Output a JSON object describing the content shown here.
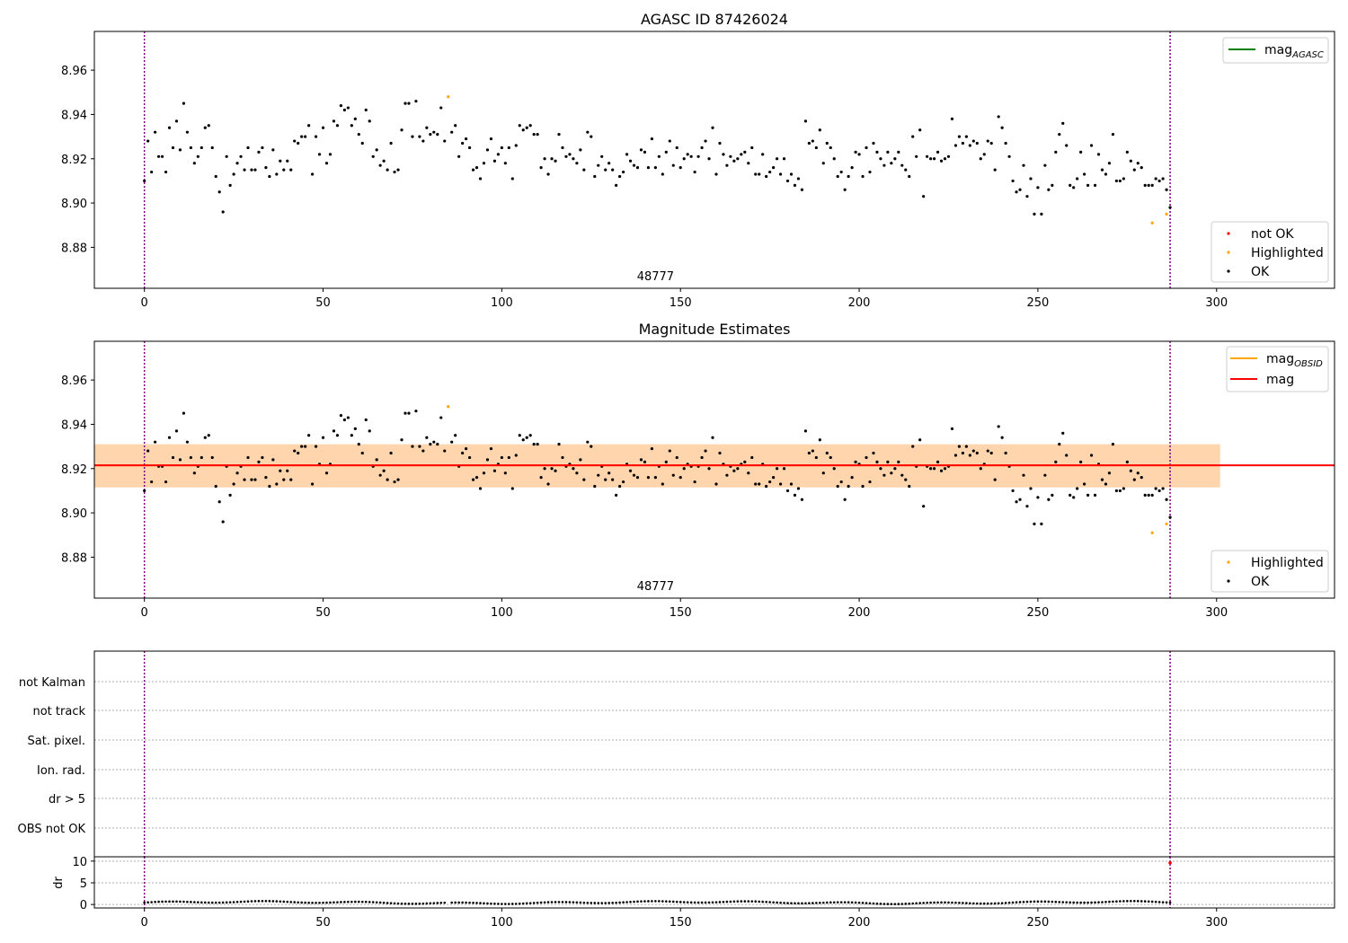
{
  "colors": {
    "ok": "#000000",
    "not_ok": "#ff0000",
    "highlighted": "#ffa500",
    "mag_agasc_line": "#008000",
    "mag_obsid_line": "#ffa500",
    "mag_line": "#ff0000",
    "obsid_band": "#ffa500",
    "mag_band": "#ffb6c1",
    "event_line": "#800080",
    "grid": "#b0b0b0"
  },
  "chart_data": [
    {
      "type": "scatter",
      "title": "AGASC ID 87426024",
      "xlim": [
        -14,
        333
      ],
      "ylim": [
        8.8615,
        8.9775
      ],
      "xticks": [
        0,
        50,
        100,
        150,
        200,
        250,
        300
      ],
      "yticks": [
        8.88,
        8.9,
        8.92,
        8.94,
        8.96
      ],
      "vlines": [
        0,
        287
      ],
      "annotation": {
        "text": "48777",
        "x": 143
      },
      "legend_lines": [
        {
          "label_main": "mag",
          "label_sub": "AGASC",
          "color": "#008000"
        }
      ],
      "legend_markers": [
        {
          "label": "not OK",
          "color": "#ff0000"
        },
        {
          "label": "Highlighted",
          "color": "#ffa500"
        },
        {
          "label": "OK",
          "color": "#000000"
        }
      ],
      "highlighted_points": [
        [
          85,
          8.948
        ],
        [
          282,
          8.891
        ],
        [
          286,
          8.895
        ]
      ]
    },
    {
      "type": "scatter",
      "title": "Magnitude Estimates",
      "xlim": [
        -14,
        333
      ],
      "ylim": [
        8.8615,
        8.9775
      ],
      "xticks": [
        0,
        50,
        100,
        150,
        200,
        250,
        300
      ],
      "yticks": [
        8.88,
        8.9,
        8.92,
        8.94,
        8.96
      ],
      "vlines": [
        0,
        287
      ],
      "annotation": {
        "text": "48777",
        "x": 143
      },
      "mag_obsid": 8.9215,
      "mag": 8.9215,
      "band_obsid": [
        8.9115,
        8.931
      ],
      "band_mag": [
        8.9115,
        8.931
      ],
      "band_x": [
        -14,
        301
      ],
      "legend_lines": [
        {
          "label_main": "mag",
          "label_sub": "OBSID",
          "color": "#ffa500"
        },
        {
          "label_main": "mag",
          "label_sub": "",
          "color": "#ff0000"
        }
      ],
      "legend_markers": [
        {
          "label": "Highlighted",
          "color": "#ffa500"
        },
        {
          "label": "OK",
          "color": "#000000"
        }
      ],
      "highlighted_points": [
        [
          85,
          8.948
        ],
        [
          282,
          8.891
        ],
        [
          286,
          8.895
        ]
      ]
    },
    {
      "type": "scatter",
      "xlim": [
        -14,
        333
      ],
      "flag_labels": [
        "not Kalman",
        "not track",
        "Sat. pixel.",
        "Ion. rad.",
        "dr > 5",
        "OBS not OK"
      ],
      "vlines": [
        0,
        287
      ]
    },
    {
      "type": "scatter",
      "ylabel": "dr",
      "xlim": [
        -14,
        333
      ],
      "ylim": [
        -0.8,
        11
      ],
      "xticks": [
        0,
        50,
        100,
        150,
        200,
        250,
        300
      ],
      "yticks": [
        0,
        5,
        10
      ],
      "vlines": [
        0,
        287
      ],
      "not_ok_point": [
        287,
        9.6
      ]
    }
  ],
  "ok_points": [
    [
      0,
      8.91
    ],
    [
      1,
      8.928
    ],
    [
      2,
      8.914
    ],
    [
      3,
      8.932
    ],
    [
      4,
      8.921
    ],
    [
      5,
      8.921
    ],
    [
      6,
      8.914
    ],
    [
      7,
      8.934
    ],
    [
      8,
      8.925
    ],
    [
      9,
      8.937
    ],
    [
      10,
      8.924
    ],
    [
      11,
      8.945
    ],
    [
      12,
      8.932
    ],
    [
      13,
      8.925
    ],
    [
      14,
      8.918
    ],
    [
      15,
      8.921
    ],
    [
      16,
      8.925
    ],
    [
      17,
      8.934
    ],
    [
      18,
      8.935
    ],
    [
      19,
      8.925
    ],
    [
      20,
      8.912
    ],
    [
      21,
      8.905
    ],
    [
      22,
      8.896
    ],
    [
      23,
      8.921
    ],
    [
      24,
      8.908
    ],
    [
      25,
      8.913
    ],
    [
      26,
      8.918
    ],
    [
      27,
      8.921
    ],
    [
      28,
      8.915
    ],
    [
      29,
      8.925
    ],
    [
      30,
      8.915
    ],
    [
      31,
      8.915
    ],
    [
      32,
      8.923
    ],
    [
      33,
      8.925
    ],
    [
      34,
      8.916
    ],
    [
      35,
      8.912
    ],
    [
      36,
      8.924
    ],
    [
      37,
      8.913
    ],
    [
      38,
      8.919
    ],
    [
      39,
      8.915
    ],
    [
      40,
      8.919
    ],
    [
      41,
      8.915
    ],
    [
      42,
      8.928
    ],
    [
      43,
      8.927
    ],
    [
      44,
      8.93
    ],
    [
      45,
      8.93
    ],
    [
      46,
      8.935
    ],
    [
      47,
      8.913
    ],
    [
      48,
      8.93
    ],
    [
      49,
      8.922
    ],
    [
      50,
      8.934
    ],
    [
      51,
      8.918
    ],
    [
      52,
      8.922
    ],
    [
      53,
      8.937
    ],
    [
      54,
      8.935
    ],
    [
      55,
      8.944
    ],
    [
      56,
      8.942
    ],
    [
      57,
      8.943
    ],
    [
      58,
      8.935
    ],
    [
      59,
      8.938
    ],
    [
      60,
      8.931
    ],
    [
      61,
      8.927
    ],
    [
      62,
      8.942
    ],
    [
      63,
      8.937
    ],
    [
      64,
      8.921
    ],
    [
      65,
      8.924
    ],
    [
      66,
      8.917
    ],
    [
      67,
      8.919
    ],
    [
      68,
      8.915
    ],
    [
      69,
      8.927
    ],
    [
      70,
      8.914
    ],
    [
      71,
      8.915
    ],
    [
      72,
      8.933
    ],
    [
      73,
      8.945
    ],
    [
      74,
      8.945
    ],
    [
      75,
      8.93
    ],
    [
      76,
      8.946
    ],
    [
      77,
      8.93
    ],
    [
      78,
      8.928
    ],
    [
      79,
      8.934
    ],
    [
      80,
      8.931
    ],
    [
      81,
      8.932
    ],
    [
      82,
      8.931
    ],
    [
      83,
      8.943
    ],
    [
      84,
      8.928
    ],
    [
      86,
      8.932
    ],
    [
      87,
      8.935
    ],
    [
      88,
      8.921
    ],
    [
      89,
      8.927
    ],
    [
      90,
      8.929
    ],
    [
      91,
      8.925
    ],
    [
      92,
      8.915
    ],
    [
      93,
      8.916
    ],
    [
      94,
      8.911
    ],
    [
      95,
      8.918
    ],
    [
      96,
      8.924
    ],
    [
      97,
      8.929
    ],
    [
      98,
      8.919
    ],
    [
      99,
      8.922
    ],
    [
      100,
      8.925
    ],
    [
      101,
      8.918
    ],
    [
      102,
      8.925
    ],
    [
      103,
      8.911
    ],
    [
      104,
      8.926
    ],
    [
      105,
      8.935
    ],
    [
      106,
      8.933
    ],
    [
      107,
      8.934
    ],
    [
      108,
      8.935
    ],
    [
      109,
      8.931
    ],
    [
      110,
      8.931
    ],
    [
      111,
      8.916
    ],
    [
      112,
      8.92
    ],
    [
      113,
      8.913
    ],
    [
      114,
      8.92
    ],
    [
      115,
      8.919
    ],
    [
      116,
      8.931
    ],
    [
      117,
      8.925
    ],
    [
      118,
      8.921
    ],
    [
      119,
      8.922
    ],
    [
      120,
      8.92
    ],
    [
      121,
      8.918
    ],
    [
      122,
      8.924
    ],
    [
      123,
      8.915
    ],
    [
      124,
      8.932
    ],
    [
      125,
      8.93
    ],
    [
      126,
      8.912
    ],
    [
      127,
      8.917
    ],
    [
      128,
      8.921
    ],
    [
      129,
      8.915
    ],
    [
      130,
      8.918
    ],
    [
      131,
      8.915
    ],
    [
      132,
      8.908
    ],
    [
      133,
      8.912
    ],
    [
      134,
      8.914
    ],
    [
      135,
      8.922
    ],
    [
      136,
      8.919
    ],
    [
      137,
      8.917
    ],
    [
      138,
      8.916
    ],
    [
      139,
      8.924
    ],
    [
      140,
      8.923
    ],
    [
      141,
      8.916
    ],
    [
      142,
      8.929
    ],
    [
      143,
      8.916
    ],
    [
      144,
      8.921
    ],
    [
      145,
      8.913
    ],
    [
      146,
      8.923
    ],
    [
      147,
      8.928
    ],
    [
      148,
      8.917
    ],
    [
      149,
      8.925
    ],
    [
      150,
      8.916
    ],
    [
      151,
      8.92
    ],
    [
      152,
      8.922
    ],
    [
      153,
      8.921
    ],
    [
      154,
      8.914
    ],
    [
      155,
      8.921
    ],
    [
      156,
      8.925
    ],
    [
      157,
      8.928
    ],
    [
      158,
      8.92
    ],
    [
      159,
      8.934
    ],
    [
      160,
      8.913
    ],
    [
      161,
      8.927
    ],
    [
      162,
      8.922
    ],
    [
      163,
      8.917
    ],
    [
      164,
      8.921
    ],
    [
      165,
      8.919
    ],
    [
      166,
      8.92
    ],
    [
      167,
      8.922
    ],
    [
      168,
      8.923
    ],
    [
      169,
      8.918
    ],
    [
      170,
      8.925
    ],
    [
      171,
      8.913
    ],
    [
      172,
      8.913
    ],
    [
      173,
      8.922
    ],
    [
      174,
      8.912
    ],
    [
      175,
      8.914
    ],
    [
      176,
      8.916
    ],
    [
      177,
      8.92
    ],
    [
      178,
      8.913
    ],
    [
      179,
      8.92
    ],
    [
      180,
      8.91
    ],
    [
      181,
      8.913
    ],
    [
      182,
      8.908
    ],
    [
      183,
      8.911
    ],
    [
      184,
      8.906
    ],
    [
      185,
      8.937
    ],
    [
      186,
      8.927
    ],
    [
      187,
      8.928
    ],
    [
      188,
      8.925
    ],
    [
      189,
      8.933
    ],
    [
      190,
      8.918
    ],
    [
      191,
      8.927
    ],
    [
      192,
      8.925
    ],
    [
      193,
      8.92
    ],
    [
      194,
      8.912
    ],
    [
      195,
      8.914
    ],
    [
      196,
      8.906
    ],
    [
      197,
      8.912
    ],
    [
      198,
      8.916
    ],
    [
      199,
      8.923
    ],
    [
      200,
      8.922
    ],
    [
      201,
      8.912
    ],
    [
      202,
      8.925
    ],
    [
      203,
      8.914
    ],
    [
      204,
      8.927
    ],
    [
      205,
      8.923
    ],
    [
      206,
      8.92
    ],
    [
      207,
      8.917
    ],
    [
      208,
      8.923
    ],
    [
      209,
      8.918
    ],
    [
      210,
      8.92
    ],
    [
      211,
      8.923
    ],
    [
      212,
      8.917
    ],
    [
      213,
      8.915
    ],
    [
      214,
      8.912
    ],
    [
      215,
      8.93
    ],
    [
      216,
      8.921
    ],
    [
      217,
      8.933
    ],
    [
      218,
      8.903
    ],
    [
      219,
      8.921
    ],
    [
      220,
      8.92
    ],
    [
      221,
      8.92
    ],
    [
      222,
      8.923
    ],
    [
      223,
      8.919
    ],
    [
      224,
      8.92
    ],
    [
      225,
      8.921
    ],
    [
      226,
      8.938
    ],
    [
      227,
      8.926
    ],
    [
      228,
      8.93
    ],
    [
      229,
      8.927
    ],
    [
      230,
      8.93
    ],
    [
      231,
      8.926
    ],
    [
      232,
      8.928
    ],
    [
      233,
      8.927
    ],
    [
      234,
      8.92
    ],
    [
      235,
      8.922
    ],
    [
      236,
      8.928
    ],
    [
      237,
      8.927
    ],
    [
      238,
      8.915
    ],
    [
      239,
      8.939
    ],
    [
      240,
      8.934
    ],
    [
      241,
      8.927
    ],
    [
      242,
      8.921
    ],
    [
      243,
      8.91
    ],
    [
      244,
      8.905
    ],
    [
      245,
      8.906
    ],
    [
      246,
      8.917
    ],
    [
      247,
      8.903
    ],
    [
      248,
      8.911
    ],
    [
      249,
      8.895
    ],
    [
      250,
      8.907
    ],
    [
      251,
      8.895
    ],
    [
      252,
      8.917
    ],
    [
      253,
      8.906
    ],
    [
      254,
      8.908
    ],
    [
      255,
      8.923
    ],
    [
      256,
      8.931
    ],
    [
      257,
      8.936
    ],
    [
      258,
      8.926
    ],
    [
      259,
      8.908
    ],
    [
      260,
      8.907
    ],
    [
      261,
      8.911
    ],
    [
      262,
      8.923
    ],
    [
      263,
      8.913
    ],
    [
      264,
      8.908
    ],
    [
      265,
      8.926
    ],
    [
      266,
      8.908
    ],
    [
      267,
      8.922
    ],
    [
      268,
      8.915
    ],
    [
      269,
      8.913
    ],
    [
      270,
      8.918
    ],
    [
      271,
      8.931
    ],
    [
      272,
      8.91
    ],
    [
      273,
      8.91
    ],
    [
      274,
      8.911
    ],
    [
      275,
      8.923
    ],
    [
      276,
      8.919
    ],
    [
      277,
      8.915
    ],
    [
      278,
      8.918
    ],
    [
      279,
      8.916
    ],
    [
      280,
      8.908
    ],
    [
      281,
      8.908
    ],
    [
      282,
      8.908
    ],
    [
      283,
      8.911
    ],
    [
      284,
      8.91
    ],
    [
      285,
      8.911
    ],
    [
      286,
      8.906
    ],
    [
      287,
      8.898
    ]
  ]
}
